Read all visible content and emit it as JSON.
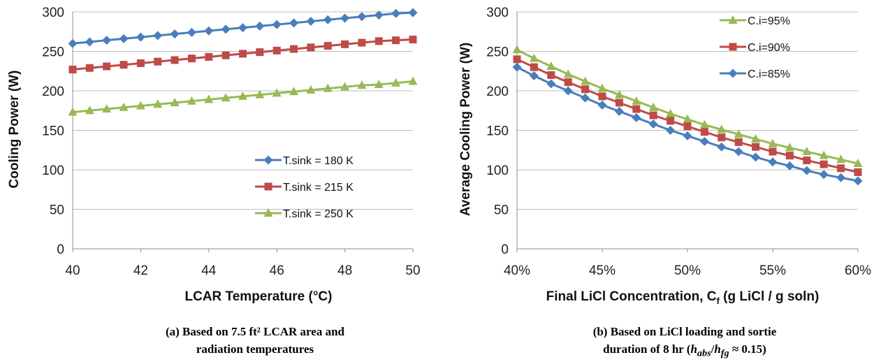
{
  "chart_data": [
    {
      "type": "line",
      "title": "",
      "xlabel": "LCAR Temperature (°C)",
      "ylabel": "Cooling Power (W)",
      "xlim": [
        40,
        50
      ],
      "ylim": [
        0,
        300
      ],
      "xticks": [
        "40",
        "42",
        "44",
        "46",
        "48",
        "50"
      ],
      "yticks": [
        "0",
        "50",
        "100",
        "150",
        "200",
        "250",
        "300"
      ],
      "grid": "horizontal",
      "legend_position": "bottom-right",
      "x": [
        40,
        40.5,
        41,
        41.5,
        42,
        42.5,
        43,
        43.5,
        44,
        44.5,
        45,
        45.5,
        46,
        46.5,
        47,
        47.5,
        48,
        48.5,
        49,
        49.5,
        50
      ],
      "series": [
        {
          "name": "T.sink = 180 K",
          "color": "#4a7ebb",
          "marker": "diamond",
          "values": [
            260,
            262,
            264,
            266,
            268,
            270,
            272,
            274,
            276,
            278,
            280,
            282,
            284,
            286,
            288,
            290,
            292,
            294,
            296,
            298,
            299
          ]
        },
        {
          "name": "T.sink = 215 K",
          "color": "#be4b48",
          "marker": "square",
          "values": [
            227,
            229,
            231,
            233,
            235,
            237,
            239,
            241,
            243,
            245,
            247,
            249,
            251,
            253,
            255,
            257,
            259,
            261,
            263,
            264,
            265
          ]
        },
        {
          "name": "T.sink = 250 K",
          "color": "#98b954",
          "marker": "triangle",
          "values": [
            173,
            175,
            177,
            179,
            181,
            183,
            185,
            187,
            189,
            191,
            193,
            195,
            197,
            199,
            201,
            203,
            205,
            207,
            208,
            210,
            212
          ]
        }
      ],
      "caption_lines": [
        "(a) Based on 7.5 ft² LCAR area and",
        "radiation temperatures"
      ]
    },
    {
      "type": "line",
      "title": "",
      "xlabel_main": "Final LiCl Concentration, C",
      "xlabel_sub": "f",
      "xlabel_tail": " (g LiCl / g soln)",
      "ylabel": "Average Cooling Power (W)",
      "xlim": [
        40,
        60
      ],
      "ylim": [
        0,
        300
      ],
      "xticks": [
        "40%",
        "45%",
        "50%",
        "55%",
        "60%"
      ],
      "yticks": [
        "0",
        "50",
        "100",
        "150",
        "200",
        "250",
        "300"
      ],
      "grid": "horizontal",
      "legend_position": "top-right",
      "x": [
        40,
        41,
        42,
        43,
        44,
        45,
        46,
        47,
        48,
        49,
        50,
        51,
        52,
        53,
        54,
        55,
        56,
        57,
        58,
        59,
        60
      ],
      "series": [
        {
          "name": "C.i=95%",
          "color": "#98b954",
          "marker": "triangle",
          "values": [
            252,
            241,
            231,
            221,
            212,
            203,
            195,
            187,
            179,
            171,
            164,
            157,
            151,
            145,
            139,
            133,
            128,
            123,
            118,
            113,
            108
          ]
        },
        {
          "name": "C.i=90%",
          "color": "#be4b48",
          "marker": "square",
          "values": [
            240,
            230,
            220,
            211,
            202,
            193,
            185,
            177,
            169,
            162,
            155,
            148,
            141,
            135,
            129,
            123,
            118,
            112,
            107,
            102,
            97
          ]
        },
        {
          "name": "C.i=85%",
          "color": "#4a7ebb",
          "marker": "diamond",
          "values": [
            230,
            219,
            209,
            200,
            191,
            182,
            174,
            166,
            158,
            150,
            143,
            136,
            129,
            123,
            116,
            110,
            105,
            99,
            94,
            90,
            86
          ]
        }
      ],
      "caption_line1": "(b) Based on LiCl loading and sortie",
      "caption_line2_pre": "duration of 8 hr (",
      "caption_h1": "h",
      "caption_h1_sub": "abs",
      "caption_slash": "/",
      "caption_h2": "h",
      "caption_h2_sub": "fg",
      "caption_line2_post": " ≈ 0.15)"
    }
  ]
}
